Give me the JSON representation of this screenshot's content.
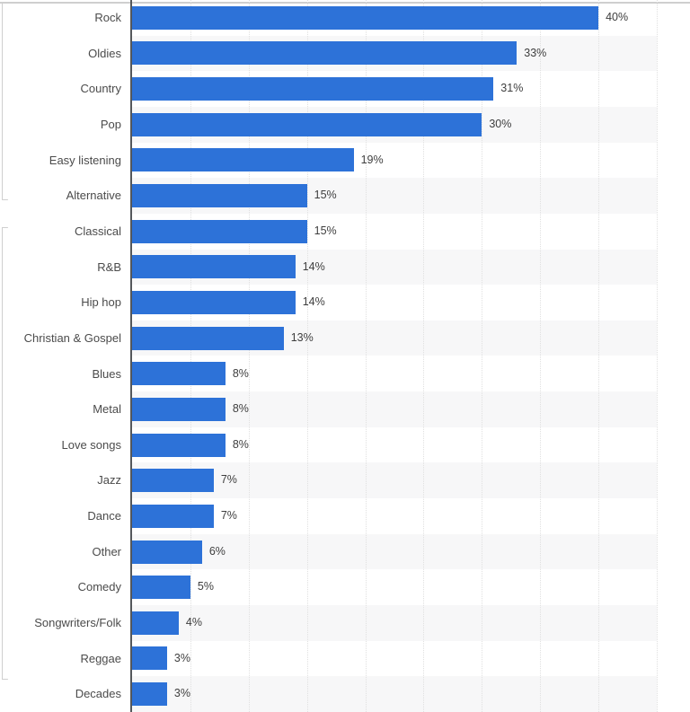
{
  "chart_data": {
    "type": "bar",
    "orientation": "horizontal",
    "title": "",
    "xlabel": "",
    "ylabel": "",
    "unit": "%",
    "value_label_format": "{value}%",
    "xlim": [
      0,
      45
    ],
    "gridline_interval": 5,
    "grid": "vertical-dotted",
    "legend": "none",
    "row_striping": "alternate rows shaded, plot area only",
    "categories": [
      "Rock",
      "Oldies",
      "Country",
      "Pop",
      "Easy listening",
      "Alternative",
      "Classical",
      "R&B",
      "Hip hop",
      "Christian & Gospel",
      "Blues",
      "Metal",
      "Love songs",
      "Jazz",
      "Dance",
      "Other",
      "Comedy",
      "Songwriters/Folk",
      "Reggae",
      "Decades"
    ],
    "values": [
      40,
      33,
      31,
      30,
      19,
      15,
      15,
      14,
      14,
      13,
      8,
      8,
      8,
      7,
      7,
      6,
      5,
      4,
      3,
      3
    ],
    "value_labels": [
      "40%",
      "33%",
      "31%",
      "30%",
      "19%",
      "15%",
      "15%",
      "14%",
      "14%",
      "13%",
      "8%",
      "8%",
      "8%",
      "7%",
      "7%",
      "6%",
      "5%",
      "4%",
      "3%",
      "3%"
    ],
    "colors": {
      "bar": "#2d72d8",
      "row_stripe": "#f7f7f8",
      "gridline": "#e0e0e0",
      "axis_line": "#54575b",
      "category_label": "#4b4b4b",
      "value_label": "#3e3e3e",
      "background": "#ffffff",
      "frame_border": "#cfcfcf"
    }
  }
}
